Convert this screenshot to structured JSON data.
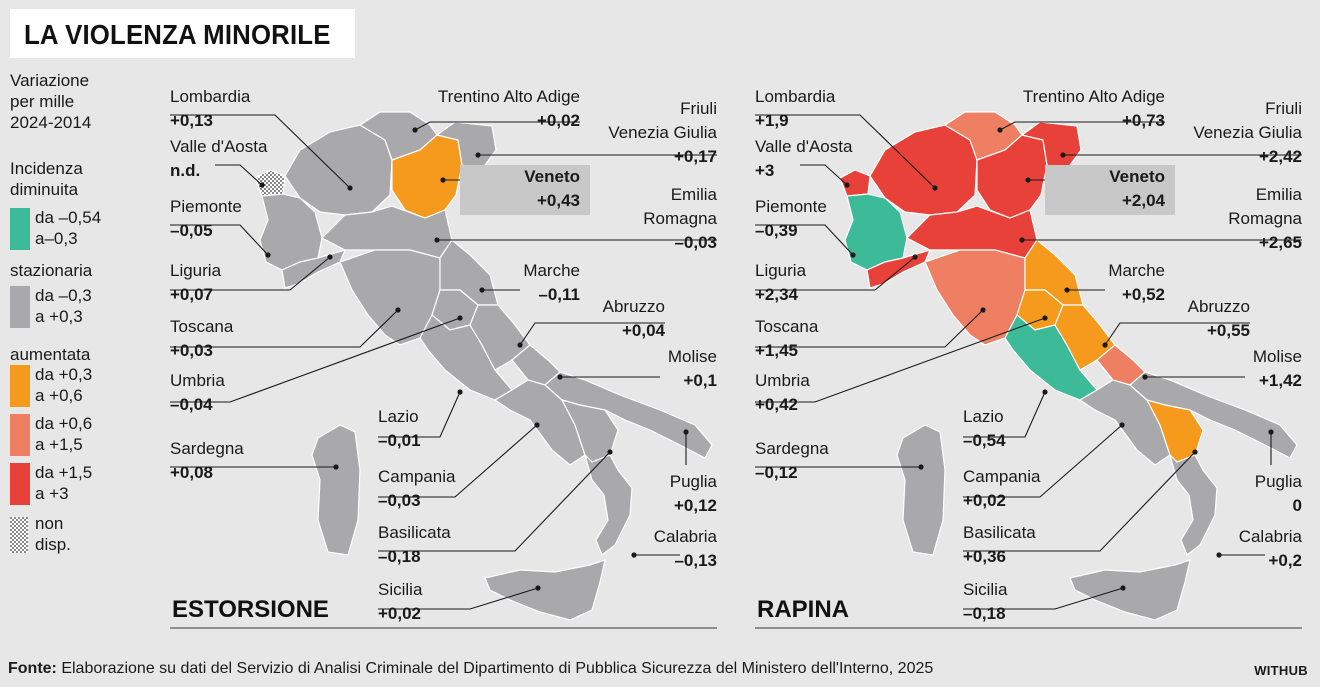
{
  "title": "LA VIOLENZA MINORILE",
  "legend": {
    "header": [
      "Variazione",
      "per mille",
      "2024-2014"
    ],
    "diminuita_label": [
      "Incidenza",
      "diminuita"
    ],
    "dim_range": [
      "da –0,54",
      "a–0,3"
    ],
    "stazionaria_label": "stazionaria",
    "staz_range": [
      "da –0,3",
      "a +0,3"
    ],
    "aumentata_label": "aumentata",
    "aum1_range": [
      "da +0,3",
      "a +0,6"
    ],
    "aum2_range": [
      "da +0,6",
      "a +1,5"
    ],
    "aum3_range": [
      "da +1,5",
      "a +3"
    ],
    "nd_label": [
      "non",
      "disp."
    ]
  },
  "colors": {
    "diminuita": "#3dba98",
    "stazionaria": "#a9a9ab",
    "aum_low": "#f59a1c",
    "aum_mid": "#ee7f63",
    "aum_high": "#e8413a",
    "background": "#e7e7e7",
    "veneto_box": "#c8c8c8"
  },
  "maps": [
    {
      "name": "ESTORSIONE",
      "regions": {
        "Lombardia": "+0,13",
        "Valle d'Aosta": "n.d.",
        "Piemonte": "–0,05",
        "Liguria": "+0,07",
        "Toscana": "+0,03",
        "Umbria": "–0,04",
        "Sardegna": "+0,08",
        "Trentino Alto Adige": "+0,02",
        "Friuli Venezia Giulia": "+0,17",
        "Veneto": "+0,43",
        "Emilia Romagna": "–0,03",
        "Marche": "–0,11",
        "Abruzzo": "+0,04",
        "Molise": "+0,1",
        "Lazio": "–0,01",
        "Campania": "–0,03",
        "Basilicata": "–0,18",
        "Puglia": "+0,12",
        "Calabria": "–0,13",
        "Sicilia": "+0,02"
      },
      "region_class": {
        "Lombardia": "stazionaria",
        "Valle d'Aosta": "nd",
        "Piemonte": "stazionaria",
        "Liguria": "stazionaria",
        "Toscana": "stazionaria",
        "Umbria": "stazionaria",
        "Sardegna": "stazionaria",
        "Trentino Alto Adige": "stazionaria",
        "Friuli Venezia Giulia": "stazionaria",
        "Veneto": "aum_low",
        "Emilia Romagna": "stazionaria",
        "Marche": "stazionaria",
        "Abruzzo": "stazionaria",
        "Molise": "stazionaria",
        "Lazio": "stazionaria",
        "Campania": "stazionaria",
        "Basilicata": "stazionaria",
        "Puglia": "stazionaria",
        "Calabria": "stazionaria",
        "Sicilia": "stazionaria"
      }
    },
    {
      "name": "RAPINA",
      "regions": {
        "Lombardia": "+1,9",
        "Valle d'Aosta": "+3",
        "Piemonte": "–0,39",
        "Liguria": "+2,34",
        "Toscana": "+1,45",
        "Umbria": "+0,42",
        "Sardegna": "–0,12",
        "Trentino Alto Adige": "+0,73",
        "Friuli Venezia Giulia": "+2,42",
        "Veneto": "+2,04",
        "Emilia Romagna": "+2,65",
        "Marche": "+0,52",
        "Abruzzo": "+0,55",
        "Molise": "+1,42",
        "Lazio": "–0,54",
        "Campania": "+0,02",
        "Basilicata": "+0,36",
        "Puglia": "0",
        "Calabria": "+0,2",
        "Sicilia": "–0,18"
      },
      "region_class": {
        "Lombardia": "aum_high",
        "Valle d'Aosta": "aum_high",
        "Piemonte": "diminuita",
        "Liguria": "aum_high",
        "Toscana": "aum_mid",
        "Umbria": "aum_low",
        "Sardegna": "stazionaria",
        "Trentino Alto Adige": "aum_mid",
        "Friuli Venezia Giulia": "aum_high",
        "Veneto": "aum_high",
        "Emilia Romagna": "aum_high",
        "Marche": "aum_low",
        "Abruzzo": "aum_low",
        "Molise": "aum_mid",
        "Lazio": "diminuita",
        "Campania": "stazionaria",
        "Basilicata": "aum_low",
        "Puglia": "stazionaria",
        "Calabria": "stazionaria",
        "Sicilia": "stazionaria"
      }
    }
  ],
  "footer": {
    "fonte_label": "Fonte:",
    "fonte_text": " Elaborazione su dati del Servizio di Analisi Criminale del Dipartimento di Pubblica Sicurezza del Ministero dell'Interno, 2025",
    "brand": "WITHUB"
  }
}
